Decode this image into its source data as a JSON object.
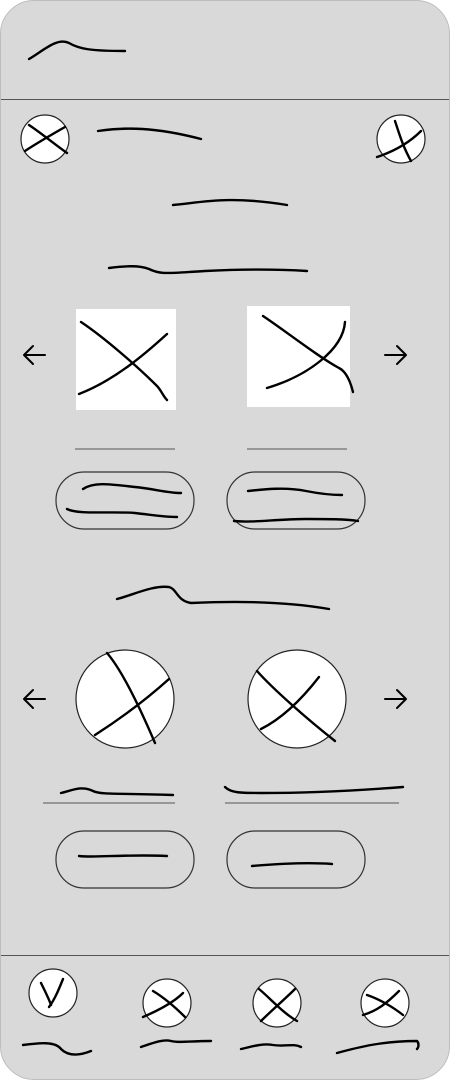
{
  "wireframe": {
    "style": "hand-drawn placeholder scribbles (no readable text)",
    "colors": {
      "background": "#d9d9d9",
      "stroke": "#000000",
      "placeholder_fill": "#ffffff",
      "divider": "#555555"
    }
  },
  "header": {
    "title_placeholder_icon": "scribble-line"
  },
  "toolbar": {
    "left_icon": "avatar-placeholder-icon",
    "right_icon": "action-placeholder-icon"
  },
  "section_one": {
    "carousel_prev_icon": "arrow-left-icon",
    "carousel_next_icon": "arrow-right-icon",
    "cards": [
      {
        "image_icon": "image-placeholder-icon"
      },
      {
        "image_icon": "image-placeholder-icon"
      }
    ]
  },
  "section_two": {
    "carousel_prev_icon": "arrow-left-icon",
    "carousel_next_icon": "arrow-right-icon",
    "cards": [
      {
        "image_icon": "round-image-placeholder-icon"
      },
      {
        "image_icon": "round-image-placeholder-icon"
      }
    ]
  },
  "bottom_nav": {
    "items": [
      {
        "icon": "nav-placeholder-icon"
      },
      {
        "icon": "nav-placeholder-icon"
      },
      {
        "icon": "nav-placeholder-icon"
      },
      {
        "icon": "nav-placeholder-icon"
      }
    ]
  }
}
